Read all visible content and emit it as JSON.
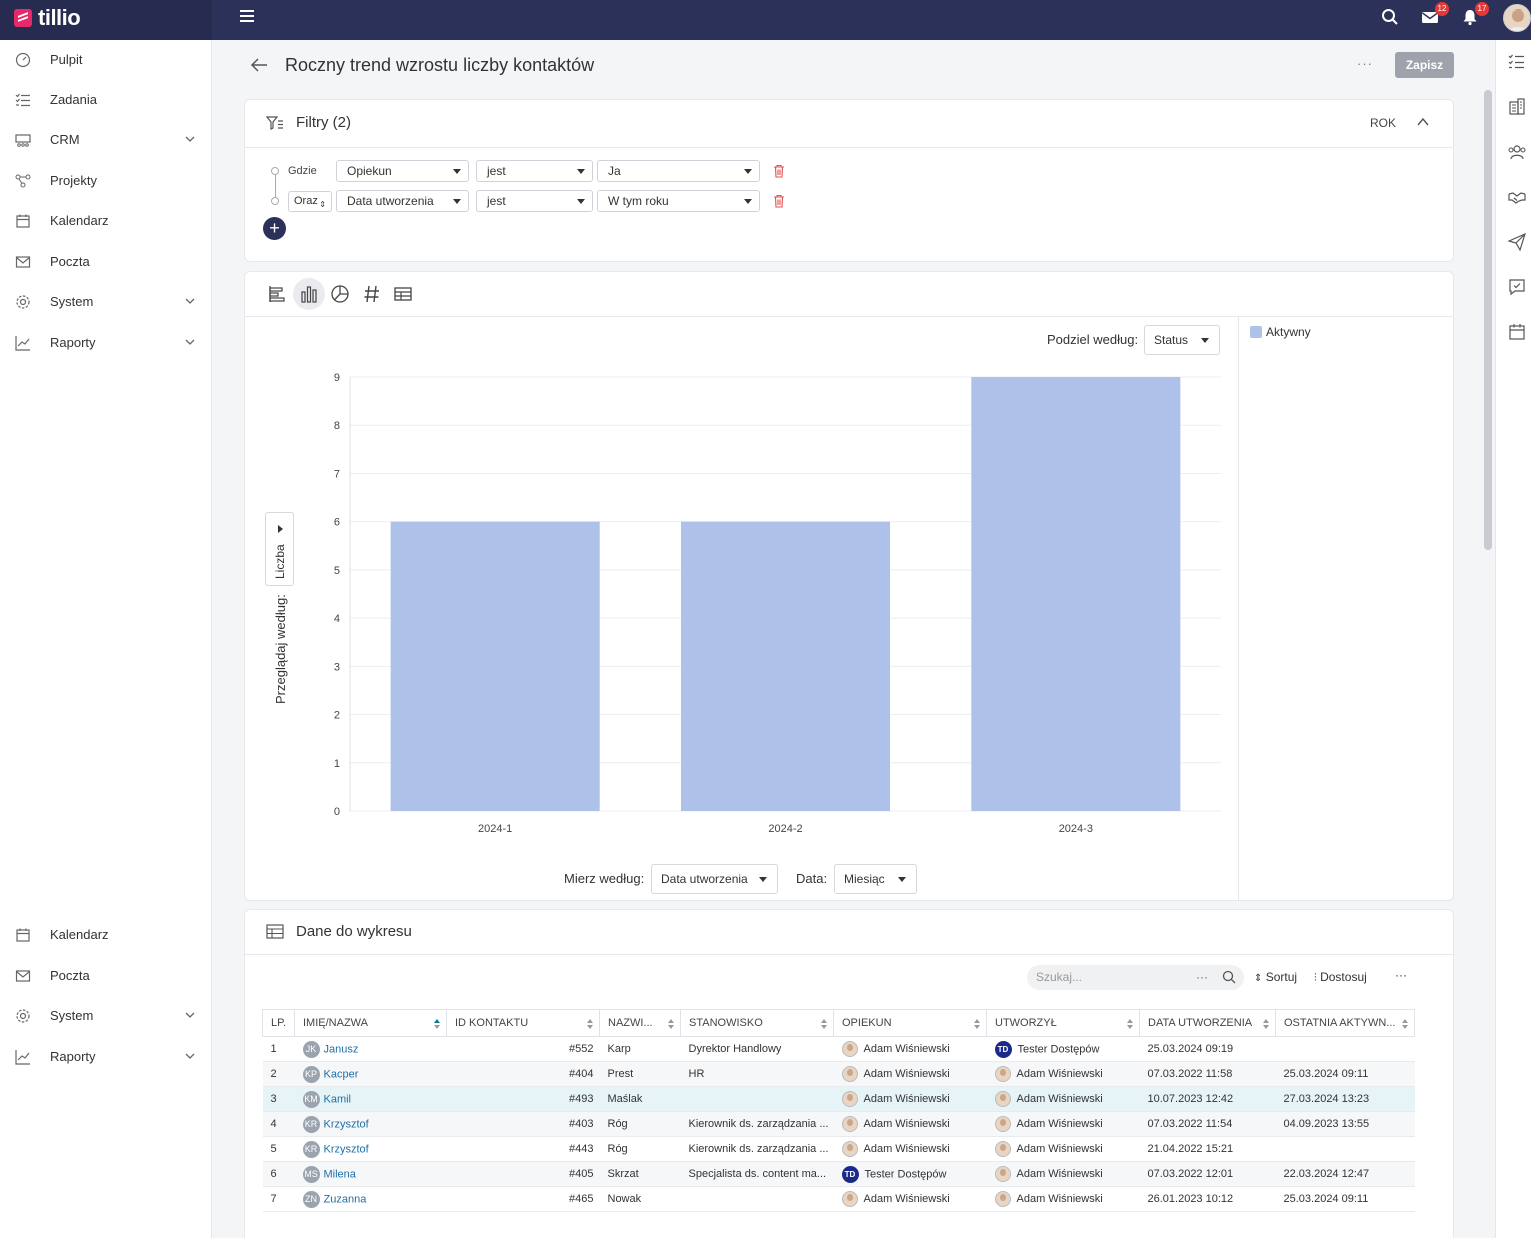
{
  "app": {
    "name": "tillio"
  },
  "topbar": {
    "mail_badge": "12",
    "notif_badge": "17"
  },
  "sidebar": {
    "top": [
      {
        "label": "Pulpit",
        "icon": "gauge-icon"
      },
      {
        "label": "Zadania",
        "icon": "tasks-icon"
      },
      {
        "label": "CRM",
        "icon": "crm-icon",
        "expandable": true
      },
      {
        "label": "Projekty",
        "icon": "projects-icon"
      },
      {
        "label": "Kalendarz",
        "icon": "calendar-icon"
      },
      {
        "label": "Poczta",
        "icon": "mail-icon"
      },
      {
        "label": "System",
        "icon": "gear-icon",
        "expandable": true
      },
      {
        "label": "Raporty",
        "icon": "chart-line-icon",
        "expandable": true
      }
    ],
    "bottom": [
      {
        "label": "Kalendarz"
      },
      {
        "label": "Poczta"
      },
      {
        "label": "System"
      },
      {
        "label": "Raporty"
      }
    ]
  },
  "header": {
    "title": "Roczny trend wzrostu liczby kontaktów",
    "more": "···",
    "save_label": "Zapisz"
  },
  "filters": {
    "title": "Filtry (2)",
    "period": "ROK",
    "rows": [
      {
        "connector": "Gdzie",
        "field": "Opiekun",
        "operator": "jest",
        "value": "Ja"
      },
      {
        "connector": "Oraz",
        "field": "Data utworzenia",
        "operator": "jest",
        "value": "W tym roku"
      }
    ]
  },
  "chart_controls": {
    "split_label": "Podziel według:",
    "split_value": "Status",
    "measure_label": "Mierz według:",
    "measure_value": "Data utworzenia",
    "date_label": "Data:",
    "date_value": "Miesiąc",
    "view_label": "Przeglądaj według:",
    "view_value": "Liczba"
  },
  "chart_data": {
    "type": "bar",
    "title": "",
    "categories": [
      "2024-1",
      "2024-2",
      "2024-3"
    ],
    "series": [
      {
        "name": "Aktywny",
        "values": [
          6,
          6,
          9
        ],
        "color": "#aec1e9"
      }
    ],
    "ylim": [
      0,
      9
    ],
    "yticks": [
      0,
      1,
      2,
      3,
      4,
      5,
      6,
      7,
      8,
      9
    ],
    "xlabel": "",
    "ylabel": "Przeglądaj według:",
    "grid": true,
    "legend": "right"
  },
  "table": {
    "title": "Dane do wykresu",
    "search_placeholder": "Szukaj...",
    "search_dots": "···",
    "sort_label": "Sortuj",
    "customize_label": "Dostosuj",
    "more": "···",
    "columns": [
      "LP.",
      "IMIĘ/NAZWA",
      "ID KONTAKTU",
      "NAZWI...",
      "STANOWISKO",
      "OPIEKUN",
      "UTWORZYŁ",
      "DATA UTWORZENIA",
      "OSTATNIA AKTYWN..."
    ],
    "rows": [
      {
        "lp": "1",
        "ini": "JK",
        "name": "Janusz",
        "id": "#552",
        "surname": "Karp",
        "position": "Dyrektor Handlowy",
        "owner": "Adam Wiśniewski",
        "owner_td": false,
        "creator": "Tester Dostępów",
        "creator_td": true,
        "created": "25.03.2024 09:19",
        "last": ""
      },
      {
        "lp": "2",
        "ini": "KP",
        "name": "Kacper",
        "id": "#404",
        "surname": "Prest",
        "position": "HR",
        "owner": "Adam Wiśniewski",
        "owner_td": false,
        "creator": "Adam Wiśniewski",
        "creator_td": false,
        "created": "07.03.2022 11:58",
        "last": "25.03.2024 09:11"
      },
      {
        "lp": "3",
        "ini": "KM",
        "name": "Kamil",
        "id": "#493",
        "surname": "Maślak",
        "position": "",
        "owner": "Adam Wiśniewski",
        "owner_td": false,
        "creator": "Adam Wiśniewski",
        "creator_td": false,
        "created": "10.07.2023 12:42",
        "last": "27.03.2024 13:23"
      },
      {
        "lp": "4",
        "ini": "KR",
        "name": "Krzysztof",
        "id": "#403",
        "surname": "Róg",
        "position": "Kierownik ds. zarządzania ...",
        "owner": "Adam Wiśniewski",
        "owner_td": false,
        "creator": "Adam Wiśniewski",
        "creator_td": false,
        "created": "07.03.2022 11:54",
        "last": "04.09.2023 13:55"
      },
      {
        "lp": "5",
        "ini": "KR",
        "name": "Krzysztof",
        "id": "#443",
        "surname": "Róg",
        "position": "Kierownik ds. zarządzania ...",
        "owner": "Adam Wiśniewski",
        "owner_td": false,
        "creator": "Adam Wiśniewski",
        "creator_td": false,
        "created": "21.04.2022 15:21",
        "last": ""
      },
      {
        "lp": "6",
        "ini": "MS",
        "name": "Milena",
        "id": "#405",
        "surname": "Skrzat",
        "position": "Specjalista ds. content ma...",
        "owner": "Tester Dostępów",
        "owner_td": true,
        "creator": "Adam Wiśniewski",
        "creator_td": false,
        "created": "07.03.2022 12:01",
        "last": "22.03.2024 12:47"
      },
      {
        "lp": "7",
        "ini": "ZN",
        "name": "Zuzanna",
        "id": "#465",
        "surname": "Nowak",
        "position": "",
        "owner": "Adam Wiśniewski",
        "owner_td": false,
        "creator": "Adam Wiśniewski",
        "creator_td": false,
        "created": "26.01.2023 10:12",
        "last": "25.03.2024 09:11"
      }
    ]
  }
}
